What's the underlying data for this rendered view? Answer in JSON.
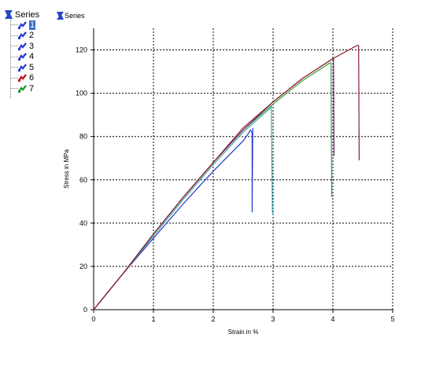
{
  "tree": {
    "root_label": "Series",
    "items": [
      {
        "label": "1",
        "color": "#2a3fd1",
        "selected": true
      },
      {
        "label": "2",
        "color": "#2a3fd1",
        "selected": false
      },
      {
        "label": "3",
        "color": "#2a3fd1",
        "selected": false
      },
      {
        "label": "4",
        "color": "#2a3fd1",
        "selected": false
      },
      {
        "label": "5",
        "color": "#2a3fd1",
        "selected": false
      },
      {
        "label": "6",
        "color": "#c4161c",
        "selected": false
      },
      {
        "label": "7",
        "color": "#1e9b2a",
        "selected": false
      }
    ]
  },
  "chart_header": "Series",
  "chart_data": {
    "type": "line",
    "xlabel": "Strain in %",
    "ylabel": "Stress in MPa",
    "xlim": [
      0,
      5
    ],
    "ylim": [
      0,
      130
    ],
    "xticks": [
      0,
      1,
      2,
      3,
      4,
      5
    ],
    "yticks": [
      0,
      20,
      40,
      60,
      80,
      100,
      120
    ],
    "grid": true,
    "series": [
      {
        "color": "#1f3ad0",
        "x": [
          0,
          0.5,
          1,
          1.5,
          2,
          2.5,
          2.6,
          2.62,
          2.65,
          2.65,
          2.66
        ],
        "y": [
          0,
          17,
          33,
          49,
          64,
          78,
          82,
          83,
          82,
          45,
          84
        ]
      },
      {
        "color": "#3fa8a6",
        "x": [
          0,
          0.5,
          1,
          1.5,
          2,
          2.5,
          2.95,
          2.97,
          2.99,
          3.0
        ],
        "y": [
          0,
          17,
          34,
          51,
          67,
          82,
          93,
          94,
          45,
          44
        ]
      },
      {
        "color": "#2f9f3a",
        "x": [
          0,
          0.5,
          1,
          1.5,
          2,
          2.5,
          3,
          3.5,
          3.95,
          3.97,
          3.98
        ],
        "y": [
          0,
          17,
          35,
          52,
          68,
          83,
          95,
          106,
          114,
          114,
          52
        ]
      },
      {
        "color": "#7a2d7a",
        "x": [
          0,
          0.5,
          1,
          1.5,
          2,
          2.5,
          3,
          3.5,
          4.0,
          4.01,
          4.02
        ],
        "y": [
          0,
          17,
          35,
          52,
          68,
          83,
          96,
          107,
          116,
          116,
          71
        ]
      },
      {
        "color": "#8b1d2c",
        "x": [
          0,
          0.5,
          1,
          1.5,
          2,
          2.5,
          3,
          3.5,
          4,
          4.4,
          4.43,
          4.44
        ],
        "y": [
          0,
          17,
          35,
          52,
          68,
          84,
          96,
          107,
          116,
          122,
          122,
          69
        ]
      }
    ]
  }
}
